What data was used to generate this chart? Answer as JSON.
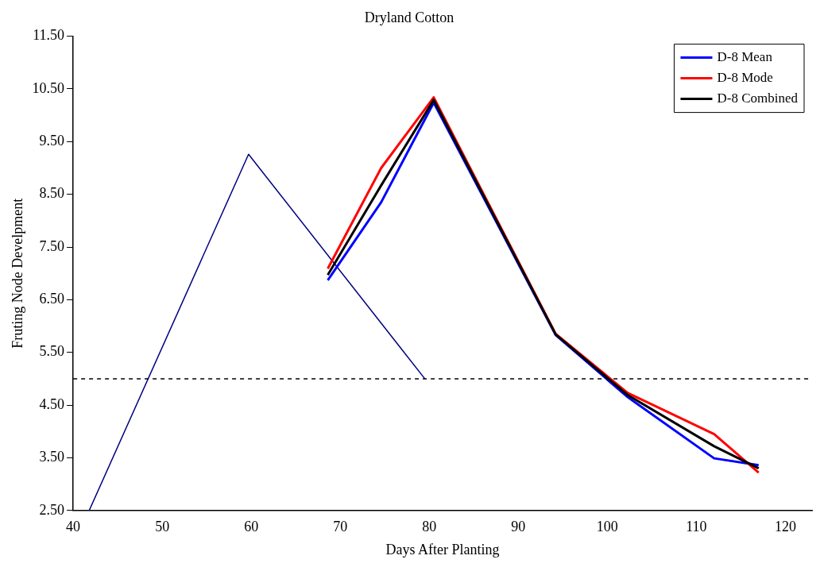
{
  "chart_data": {
    "type": "line",
    "title": "Dryland Cotton",
    "xlabel": "Days After Planting",
    "ylabel": "Fruting Node Develpment",
    "xlim": [
      40,
      123
    ],
    "xticks": [
      40,
      50,
      60,
      70,
      80,
      90,
      100,
      110,
      120
    ],
    "ylim": [
      2.5,
      11.5
    ],
    "yticks": [
      {
        "value": 2.5,
        "label": "2.50"
      },
      {
        "value": 3.5,
        "label": "3.50"
      },
      {
        "value": 4.5,
        "label": "4.50"
      },
      {
        "value": 5.5,
        "label": "5.50"
      },
      {
        "value": 6.5,
        "label": "6.50"
      },
      {
        "value": 7.5,
        "label": "7.50"
      },
      {
        "value": 8.5,
        "label": "8.50"
      },
      {
        "value": 9.5,
        "label": "9.50"
      },
      {
        "value": 10.5,
        "label": "10.50"
      },
      {
        "value": 11.5,
        "label": "11.50"
      }
    ],
    "grid": false,
    "legend": "top right",
    "marker": "none",
    "line_style": "solid",
    "series": [
      {
        "color": "#000080",
        "x": [
          41.8,
          59.7,
          79.5
        ],
        "values": [
          2.5,
          9.26,
          5.0
        ]
      },
      {
        "name": "D-8 Mean",
        "color": "#0000ff",
        "x": [
          68.6,
          74.6,
          80.5,
          94.2,
          102.3,
          112.0,
          117.0
        ],
        "values": [
          6.87,
          8.35,
          10.24,
          5.83,
          4.65,
          3.49,
          3.36
        ]
      },
      {
        "name": "D-8 Mode",
        "color": "#ff0000",
        "x": [
          68.6,
          74.6,
          80.5,
          94.2,
          102.3,
          112.0,
          117.0
        ],
        "values": [
          7.09,
          9.0,
          10.34,
          5.85,
          4.73,
          3.95,
          3.22
        ]
      },
      {
        "name": "D-8 Combined",
        "color": "#000000",
        "x": [
          68.6,
          74.6,
          80.5,
          94.2,
          102.3,
          112.0,
          117.0
        ],
        "values": [
          6.97,
          8.67,
          10.29,
          5.84,
          4.69,
          3.72,
          3.3
        ]
      }
    ],
    "ref_lines": [
      {
        "axis": "y",
        "value": 5.0,
        "color": "#000000",
        "line_style": "dashed"
      }
    ]
  }
}
